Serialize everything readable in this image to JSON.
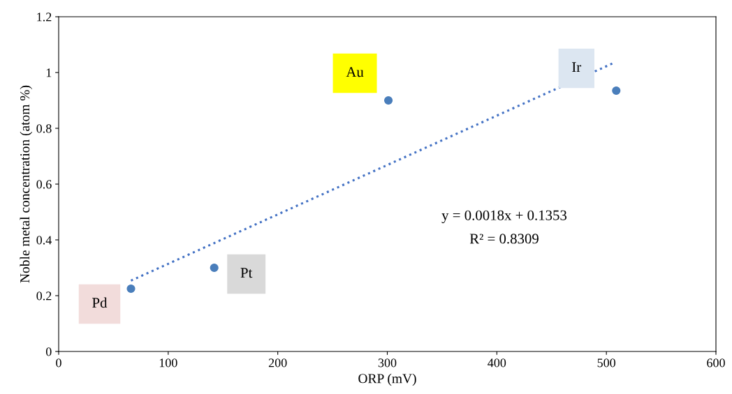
{
  "chart_data": {
    "type": "scatter",
    "xlabel": "ORP (mV)",
    "ylabel": "Noble metal concentration (atom %)",
    "xlim": [
      0,
      600
    ],
    "xticks": [
      0,
      100,
      200,
      300,
      400,
      500,
      600
    ],
    "ylim": [
      0,
      1.2
    ],
    "yticks": [
      0,
      0.2,
      0.4,
      0.6,
      0.8,
      1,
      1.2
    ],
    "grid": false,
    "legend": false,
    "marker": "circle",
    "series": [
      {
        "color": "#4a7ebb",
        "x": [
          66,
          142,
          301,
          509
        ],
        "values": [
          0.225,
          0.3,
          0.9,
          0.935
        ]
      },
      {
        "type": "line",
        "color": "#4472c4",
        "line_style": "dotted",
        "marker": "none",
        "x": [
          66,
          507
        ],
        "values": [
          0.254,
          1.035
        ]
      }
    ],
    "annotations": [
      {
        "text": "Pd",
        "x": 66,
        "y": 0.225
      },
      {
        "text": "Pt",
        "x": 142,
        "y": 0.3
      },
      {
        "text": "Au",
        "x": 301,
        "y": 0.9
      },
      {
        "text": "Ir",
        "x": 509,
        "y": 0.935
      },
      "y = 0.0018x + 0.1353",
      "R² = 0.8309"
    ]
  }
}
